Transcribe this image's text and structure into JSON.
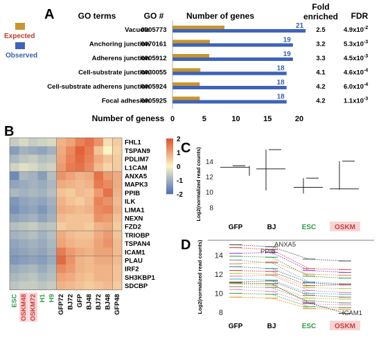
{
  "panel_labels": {
    "a": "A",
    "b": "B",
    "c": "C",
    "d": "D"
  },
  "chart_data": [
    {
      "panel": "A",
      "type": "bar",
      "column_headers": {
        "go_terms": "GO terms",
        "go_number": "GO #",
        "num_genes": "Number of genes",
        "fold_line1": "Fold",
        "fold_line2": "enriched",
        "fdr": "FDR"
      },
      "legend": {
        "expected": "Expected",
        "observed": "Observed"
      },
      "colors": {
        "expected": "#c8952e",
        "observed": "#3f63b8",
        "count_label": "#3a5fa8"
      },
      "xlabel": "Number of geness",
      "xticks": [
        "0",
        "5",
        "10",
        "15",
        "20"
      ],
      "xlim": [
        0,
        20
      ],
      "rows": [
        {
          "term": "Vacuole",
          "go": "0005773",
          "expected": 8.2,
          "observed": 21,
          "count": "21",
          "fold": "2.5",
          "fdr_base": "4.9x10",
          "fdr_exp": "-2"
        },
        {
          "term": "Anchoring junction",
          "go": "0070161",
          "expected": 5.9,
          "observed": 19,
          "count": "19",
          "fold": "3.2",
          "fdr_base": "5.3x10",
          "fdr_exp": "-3"
        },
        {
          "term": "Adherens junction",
          "go": "0005912",
          "expected": 5.8,
          "observed": 19,
          "count": "19",
          "fold": "3.3",
          "fdr_base": "4.5x10",
          "fdr_exp": "-3"
        },
        {
          "term": "Cell-substrate junction",
          "go": "0030055",
          "expected": 4.4,
          "observed": 18,
          "count": "18",
          "fold": "4.1",
          "fdr_base": "4.6x10",
          "fdr_exp": "-4"
        },
        {
          "term": "Cell-substrate adherens junction",
          "go": "0005924",
          "expected": 4.3,
          "observed": 18,
          "count": "18",
          "fold": "4.2",
          "fdr_base": "6.0x10",
          "fdr_exp": "-4"
        },
        {
          "term": "Focal adhesion",
          "go": "0005925",
          "expected": 4.3,
          "observed": 18,
          "count": "18",
          "fold": "4.2",
          "fdr_base": "1.1x10",
          "fdr_exp": "-3"
        }
      ]
    },
    {
      "panel": "B",
      "type": "heatmap",
      "genes": [
        "FHL1",
        "TSPAN9",
        "PDLIM7",
        "L1CAM",
        "ANXA5",
        "MAPK3",
        "PPIB",
        "ILK",
        "LIMA1",
        "NEXN",
        "FZD2",
        "TRIOBP",
        "TSPAN4",
        "ICAM1",
        "PLAU",
        "IRF2",
        "SH3KBP1",
        "SDCBP"
      ],
      "samples": [
        {
          "label": "ESC",
          "group": "esc"
        },
        {
          "label": "OSKM48",
          "group": "oskm"
        },
        {
          "label": "OSKM72",
          "group": "oskm"
        },
        {
          "label": "H1",
          "group": "esc"
        },
        {
          "label": "H9",
          "group": "esc"
        },
        {
          "label": "GFP72",
          "group": "plain"
        },
        {
          "label": "BJ72",
          "group": "plain"
        },
        {
          "label": "GFP",
          "group": "plain"
        },
        {
          "label": "BJ48",
          "group": "plain"
        },
        {
          "label": "BJ72",
          "group": "plain"
        },
        {
          "label": "BJ48",
          "group": "plain"
        },
        {
          "label": "GFP48",
          "group": "plain"
        }
      ],
      "values": [
        [
          -0.6,
          -0.4,
          -0.6,
          -0.5,
          -0.4,
          0.8,
          1.0,
          1.4,
          1.6,
          1.2,
          0.3,
          0.5
        ],
        [
          -1.3,
          -1.0,
          -1.1,
          -1.2,
          -1.0,
          0.9,
          1.3,
          1.8,
          1.5,
          0.6,
          0.0,
          0.4
        ],
        [
          -0.9,
          -0.7,
          -0.6,
          -0.8,
          -0.7,
          1.0,
          1.4,
          1.7,
          1.4,
          0.9,
          0.6,
          0.5
        ],
        [
          -0.5,
          -0.3,
          -0.4,
          -0.6,
          -0.5,
          1.1,
          1.5,
          1.6,
          1.3,
          0.7,
          0.4,
          0.5
        ],
        [
          -1.6,
          -0.9,
          -1.0,
          -1.3,
          -0.8,
          1.2,
          1.0,
          0.8,
          0.9,
          1.6,
          1.1,
          0.9
        ],
        [
          -1.2,
          -1.1,
          -1.0,
          -1.1,
          -0.9,
          0.9,
          0.8,
          0.7,
          0.8,
          1.5,
          1.3,
          0.9
        ],
        [
          -0.9,
          -1.0,
          -0.9,
          -1.0,
          -0.8,
          0.6,
          0.5,
          0.7,
          0.6,
          1.1,
          1.6,
          0.8
        ],
        [
          -1.4,
          -1.2,
          -1.1,
          -1.2,
          -1.0,
          0.8,
          0.6,
          0.5,
          0.7,
          1.4,
          1.2,
          0.7
        ],
        [
          -1.5,
          -1.3,
          -1.2,
          -1.4,
          -1.1,
          0.9,
          0.8,
          0.7,
          0.8,
          1.3,
          1.4,
          0.8
        ],
        [
          -1.2,
          -1.1,
          -1.0,
          -1.2,
          -1.0,
          0.7,
          0.6,
          0.6,
          0.6,
          1.2,
          1.1,
          0.6
        ],
        [
          -0.8,
          -0.7,
          -0.6,
          -0.8,
          -0.7,
          0.5,
          0.6,
          0.6,
          0.5,
          0.8,
          0.9,
          0.5
        ],
        [
          -1.0,
          -0.9,
          -0.8,
          -1.0,
          -0.8,
          0.9,
          0.7,
          0.6,
          0.6,
          0.9,
          1.1,
          0.6
        ],
        [
          -1.2,
          -1.1,
          -1.0,
          -1.1,
          -0.9,
          1.0,
          0.8,
          0.7,
          0.7,
          1.0,
          1.2,
          0.7
        ],
        [
          -1.3,
          -1.2,
          -1.1,
          -1.2,
          -1.0,
          1.5,
          1.1,
          0.9,
          0.8,
          1.0,
          1.0,
          0.7
        ],
        [
          -1.4,
          -1.3,
          -1.2,
          -1.3,
          -1.1,
          1.7,
          1.2,
          0.8,
          0.7,
          0.9,
          0.9,
          0.7
        ],
        [
          -1.1,
          -1.0,
          -0.9,
          -1.1,
          -0.9,
          1.3,
          1.1,
          0.8,
          0.7,
          0.8,
          0.8,
          0.6
        ],
        [
          -0.9,
          -0.8,
          -0.7,
          -0.9,
          -0.8,
          1.0,
          0.9,
          0.7,
          0.6,
          0.8,
          0.8,
          0.6
        ],
        [
          -0.7,
          -0.6,
          -0.6,
          -0.7,
          -0.6,
          0.8,
          0.7,
          0.6,
          0.5,
          0.6,
          0.7,
          0.5
        ]
      ],
      "scale_ticks": [
        "2",
        "1",
        "0",
        "-1",
        "-2"
      ],
      "scale_range": [
        -2,
        2
      ],
      "colors": {
        "low": "#4a6fb5",
        "mid": "#fbf4c6",
        "high": "#e0522a",
        "esc_label": "#2e9a45",
        "oskm_label": "#d33a3a",
        "oskm_bg": "#f6d5d5"
      }
    },
    {
      "panel": "C",
      "type": "scatter",
      "ylabel": "Log2(normalized read counts)",
      "yticks": [
        "14",
        "12",
        "10",
        "8"
      ],
      "ylim": [
        7.5,
        16.5
      ],
      "categories": [
        {
          "label": "GFP",
          "style": "plain"
        },
        {
          "label": "BJ",
          "style": "plain"
        },
        {
          "label": "ESC",
          "style": "esc"
        },
        {
          "label": "OSKM",
          "style": "oskm"
        }
      ],
      "summary": [
        {
          "median": 13.2,
          "low": 12.1,
          "high": 13.4
        },
        {
          "median": 13.0,
          "low": 10.2,
          "high": 15.5
        },
        {
          "median": 10.6,
          "low": 9.8,
          "high": 11.8
        },
        {
          "median": 10.4,
          "low": 10.3,
          "high": 14.0
        }
      ]
    },
    {
      "panel": "D",
      "type": "line",
      "ylabel": "Log2(normalized read counts)",
      "yticks": [
        "14",
        "12",
        "10",
        "8"
      ],
      "ylim": [
        7.5,
        15.5
      ],
      "categories": [
        {
          "label": "GFP",
          "style": "plain"
        },
        {
          "label": "BJ",
          "style": "plain"
        },
        {
          "label": "ESC",
          "style": "esc"
        },
        {
          "label": "OSKM",
          "style": "oskm"
        }
      ],
      "annotations": [
        {
          "text": "ANXA5",
          "series": 0
        },
        {
          "text": "PPIB",
          "series": 1
        },
        {
          "text": "ICAM1",
          "series": 17
        }
      ],
      "series": [
        {
          "values": [
            15.1,
            14.9,
            13.6,
            13.4
          ],
          "color": "#444444"
        },
        {
          "values": [
            13.5,
            13.2,
            11.2,
            11.0
          ],
          "color": "#888888"
        },
        {
          "values": [
            14.8,
            14.6,
            12.6,
            12.5
          ],
          "color": "#d23a3a"
        },
        {
          "values": [
            14.2,
            14.3,
            12.4,
            12.2
          ],
          "color": "#8a2be2"
        },
        {
          "values": [
            13.9,
            13.8,
            11.8,
            11.6
          ],
          "color": "#2e9a45"
        },
        {
          "values": [
            13.1,
            13.3,
            12.0,
            11.9
          ],
          "color": "#e08a20"
        },
        {
          "values": [
            12.8,
            12.6,
            11.1,
            10.9
          ],
          "color": "#1f77b4"
        },
        {
          "values": [
            12.4,
            12.3,
            10.8,
            10.9
          ],
          "color": "#c0392b"
        },
        {
          "values": [
            12.1,
            12.0,
            10.6,
            10.5
          ],
          "color": "#9acd32"
        },
        {
          "values": [
            11.8,
            11.9,
            10.3,
            10.1
          ],
          "color": "#ff69b4"
        },
        {
          "values": [
            11.5,
            11.4,
            10.0,
            9.9
          ],
          "color": "#17becf"
        },
        {
          "values": [
            11.2,
            11.3,
            9.8,
            9.6
          ],
          "color": "#8c564b"
        },
        {
          "values": [
            11.0,
            10.8,
            9.5,
            9.4
          ],
          "color": "#bcbd22"
        },
        {
          "values": [
            10.7,
            10.6,
            9.2,
            9.0
          ],
          "color": "#7f7f7f"
        },
        {
          "values": [
            10.4,
            10.2,
            8.9,
            8.8
          ],
          "color": "#e377c2"
        },
        {
          "values": [
            10.0,
            9.9,
            8.6,
            8.5
          ],
          "color": "#2ca02c"
        },
        {
          "values": [
            9.6,
            9.5,
            8.4,
            8.3
          ],
          "color": "#ff7f0e"
        },
        {
          "values": [
            11.1,
            11.0,
            9.0,
            7.9
          ],
          "color": "#333333"
        }
      ]
    }
  ]
}
